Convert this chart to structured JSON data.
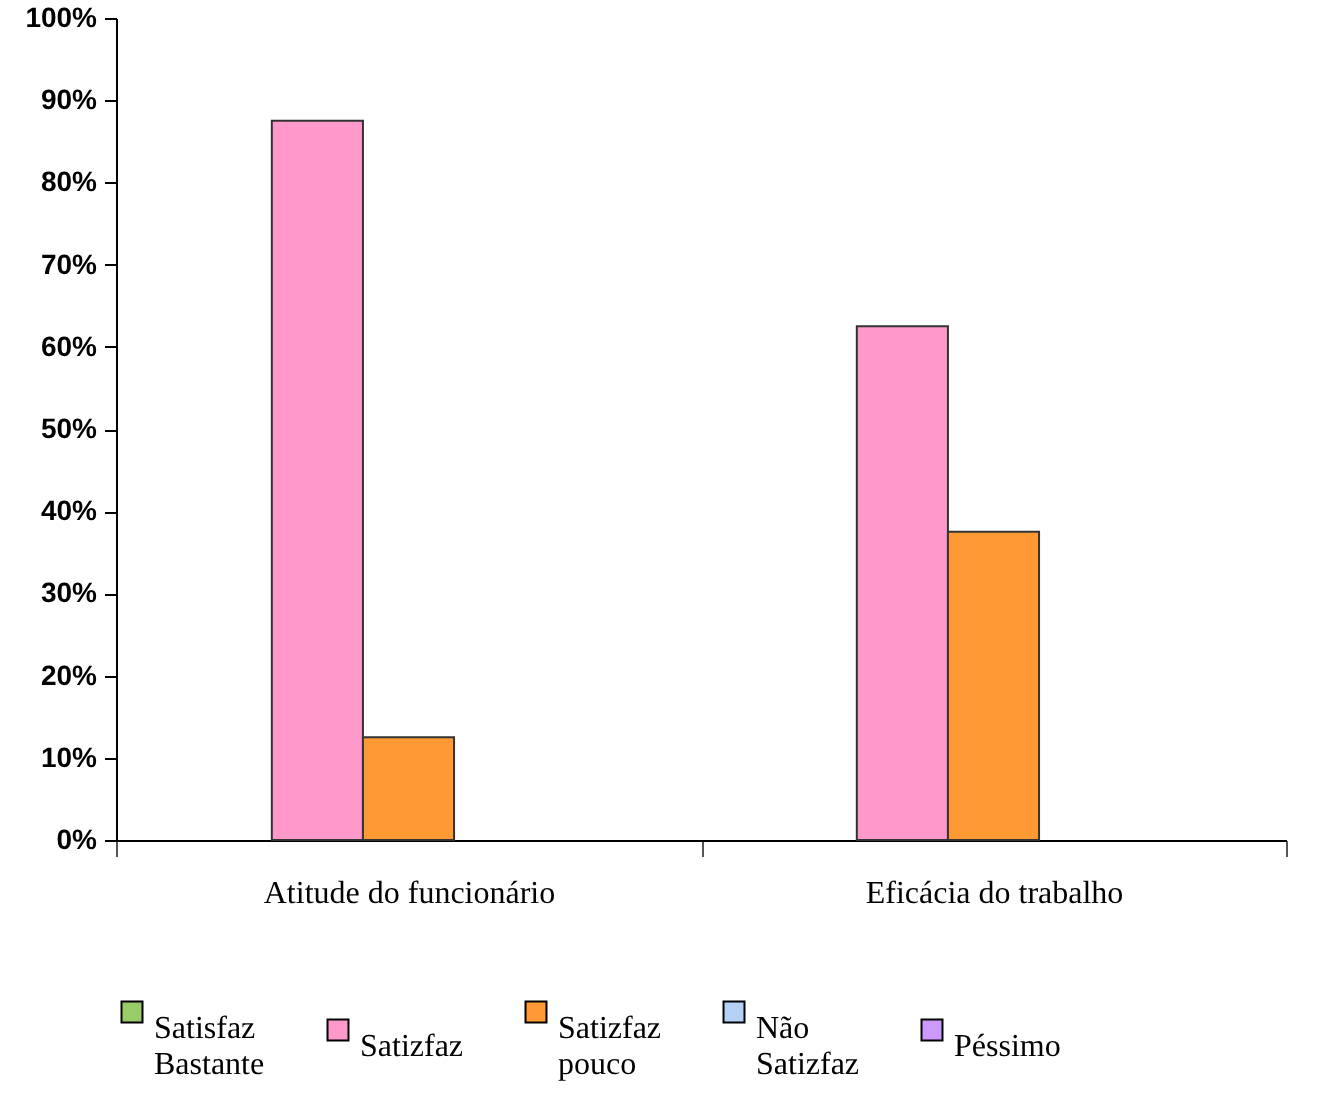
{
  "chart_data": {
    "type": "bar",
    "categories": [
      "Atitude do funcionário",
      "Eficácia do trabalho"
    ],
    "series": [
      {
        "name": "Satisfaz Bastante",
        "color": "#99cc66",
        "values": [
          null,
          null
        ]
      },
      {
        "name": "Satizfaz",
        "color": "#ff99cc",
        "values": [
          87.5,
          62.5
        ]
      },
      {
        "name": "Satizfaz pouco",
        "color": "#ff9933",
        "values": [
          12.5,
          37.5
        ]
      },
      {
        "name": "Não Satizfaz",
        "color": "#b3d1f5",
        "values": [
          null,
          null
        ]
      },
      {
        "name": "Péssimo",
        "color": "#cc99ff",
        "values": [
          null,
          null
        ]
      }
    ],
    "ylim": [
      0,
      100
    ],
    "yticks": [
      {
        "value": 0,
        "label": "0%"
      },
      {
        "value": 10,
        "label": "10%"
      },
      {
        "value": 20,
        "label": "20%"
      },
      {
        "value": 30,
        "label": "30%"
      },
      {
        "value": 40,
        "label": "40%"
      },
      {
        "value": 50,
        "label": "50%"
      },
      {
        "value": 60,
        "label": "60%"
      },
      {
        "value": 70,
        "label": "70%"
      },
      {
        "value": 80,
        "label": "80%"
      },
      {
        "value": 90,
        "label": "90%"
      },
      {
        "value": 100,
        "label": "100%"
      }
    ],
    "legend": "bottom"
  }
}
